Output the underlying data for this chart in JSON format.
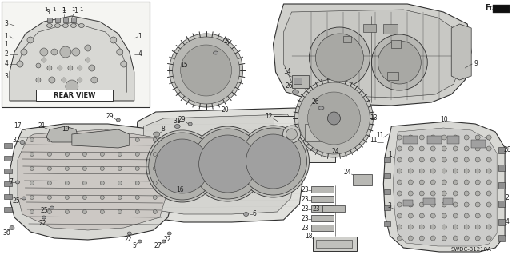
{
  "background_color": "#ffffff",
  "line_color": "#303030",
  "text_color": "#202020",
  "fill_light": "#e8e8e4",
  "fill_mid": "#d0d0cc",
  "fill_dark": "#b8b8b4",
  "diagram_code": "SWDC-B1210A",
  "fr_label": "Fr.",
  "rear_view_label": "REAR VIEW",
  "label_fs": 5.5,
  "dpi": 100
}
